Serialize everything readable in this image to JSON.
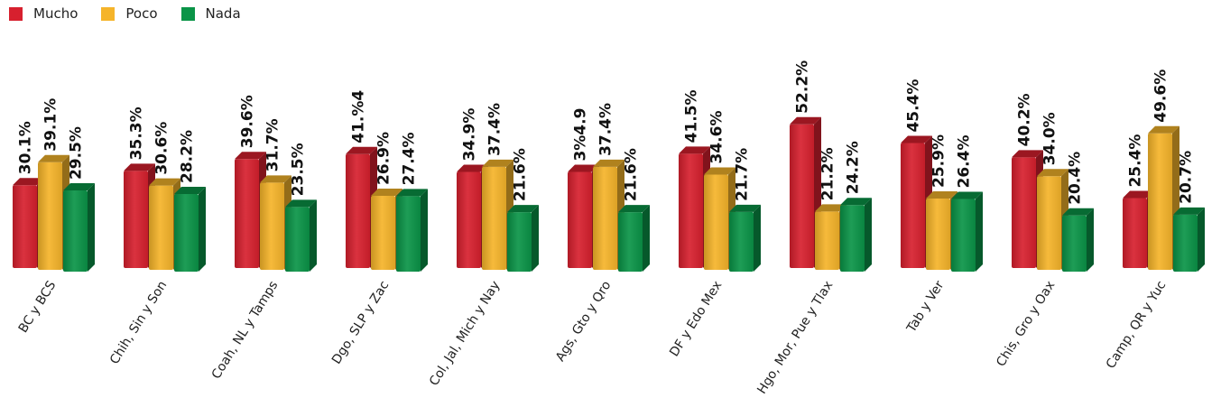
{
  "chart_data": {
    "type": "bar",
    "title": "",
    "xlabel": "",
    "ylabel": "",
    "ylim": [
      0,
      60
    ],
    "grid": false,
    "legend_position": "top-left",
    "categories": [
      "BC y BCS",
      "Chih, Sin y Son",
      "Coah, NL y Tamps",
      "Dgo, SLP y Zac",
      "Col, Jal, Mich y Nay",
      "Ags, Gto y Qro",
      "DF y Edo Mex",
      "Hgo, Mor, Pue y Tlax",
      "Tab y Ver",
      "Chis, Gro y Oax",
      "Camp, QR y Yuc"
    ],
    "series": [
      {
        "name": "Mucho",
        "color": "#d7202e",
        "values": [
          30.1,
          35.3,
          39.6,
          41.4,
          34.9,
          34.9,
          41.5,
          52.2,
          45.4,
          40.2,
          25.4
        ],
        "labels": [
          "30.1%",
          "35.3%",
          "39.6%",
          "41.%4",
          "34.9%",
          "3%4.9",
          "41.5%",
          "52.2%",
          "45.4%",
          "40.2%",
          "25.4%"
        ]
      },
      {
        "name": "Poco",
        "color": "#f5b42a",
        "values": [
          39.1,
          30.6,
          31.7,
          26.9,
          37.4,
          37.4,
          34.6,
          21.2,
          25.9,
          34.0,
          49.6
        ],
        "labels": [
          "39.1%",
          "30.6%",
          "31.7%",
          "26.9%",
          "37.4%",
          "37.4%",
          "34.6%",
          "21.2%",
          "25.9%",
          "34.0%",
          "49.6%"
        ]
      },
      {
        "name": "Nada",
        "color": "#0a9447",
        "values": [
          29.5,
          28.2,
          23.5,
          27.4,
          21.6,
          21.6,
          21.7,
          24.2,
          26.4,
          20.4,
          20.7
        ],
        "labels": [
          "29.5%",
          "28.2%",
          "23.5%",
          "27.4%",
          "21.6%",
          "21.6%",
          "21.7%",
          "24.2%",
          "26.4%",
          "20.4%",
          "20.7%"
        ]
      }
    ]
  }
}
